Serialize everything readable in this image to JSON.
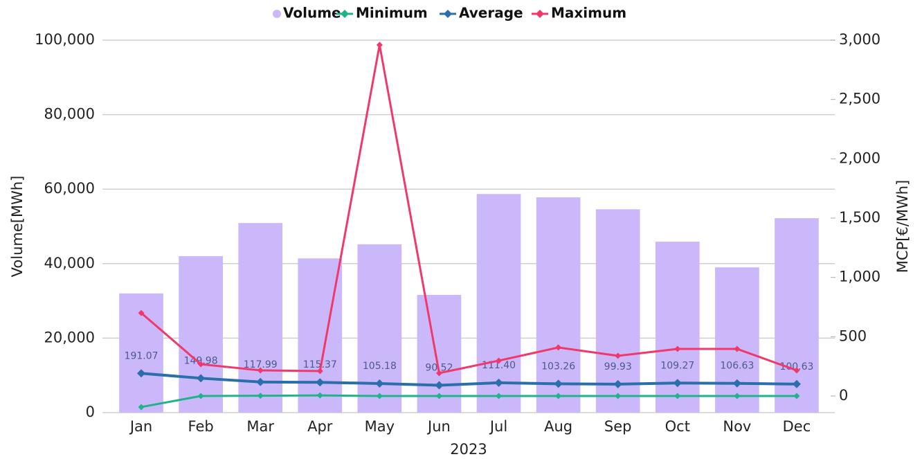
{
  "chart_data": {
    "type": "bar-line",
    "categories": [
      "Jan",
      "Feb",
      "Mar",
      "Apr",
      "May",
      "Jun",
      "Jul",
      "Aug",
      "Sep",
      "Oct",
      "Nov",
      "Dec"
    ],
    "x_label": "2023",
    "y_label": "Volume[MWh]",
    "y2_label": "MCP[€/MWh]",
    "ylim": [
      0,
      100000
    ],
    "yticks": [
      0,
      {
        "value": 20000,
        "label": "20,000"
      },
      {
        "value": 40000,
        "label": "40,000"
      },
      {
        "value": 60000,
        "label": "60,000"
      },
      {
        "value": 80000,
        "label": "80,000"
      },
      {
        "value": 100000,
        "label": "100,000"
      }
    ],
    "y2lim": [
      -140,
      3000
    ],
    "y2ticks": [
      0,
      500,
      {
        "value": 1000,
        "label": "1,000"
      },
      {
        "value": 1500,
        "label": "1,500"
      },
      {
        "value": 2000,
        "label": "2,000"
      },
      {
        "value": 2500,
        "label": "2,500"
      },
      {
        "value": 3000,
        "label": "3,000"
      }
    ],
    "grid": true,
    "legend": "top",
    "series": [
      {
        "name": "Volume",
        "type": "bar",
        "color": "#cbb8fb",
        "values": [
          32000,
          42000,
          50900,
          41400,
          45200,
          31600,
          58700,
          57800,
          54600,
          45900,
          39000,
          52200
        ]
      },
      {
        "name": "Minimum",
        "type": "line",
        "axis": "y2",
        "color": "#20b38a",
        "values": [
          -93,
          0,
          2,
          5,
          0,
          0,
          0,
          0,
          0,
          0,
          0,
          0
        ]
      },
      {
        "name": "Average",
        "type": "line",
        "axis": "y2",
        "color": "#2a6eab",
        "values": [
          191.07,
          149.98,
          117.99,
          115.37,
          105.18,
          90.52,
          111.4,
          103.26,
          99.93,
          109.27,
          106.63,
          100.63
        ],
        "value_labels": [
          "191.07",
          "149.98",
          "117.99",
          "115.37",
          "105.18",
          "90.52",
          "111.40",
          "103.26",
          "99.93",
          "109.27",
          "106.63",
          "100.63"
        ]
      },
      {
        "name": "Maximum",
        "type": "line",
        "axis": "y2",
        "color": "#f0386b",
        "values": [
          700,
          268,
          216,
          210,
          2960,
          193,
          298,
          409,
          339,
          397,
          397,
          216
        ]
      }
    ]
  }
}
